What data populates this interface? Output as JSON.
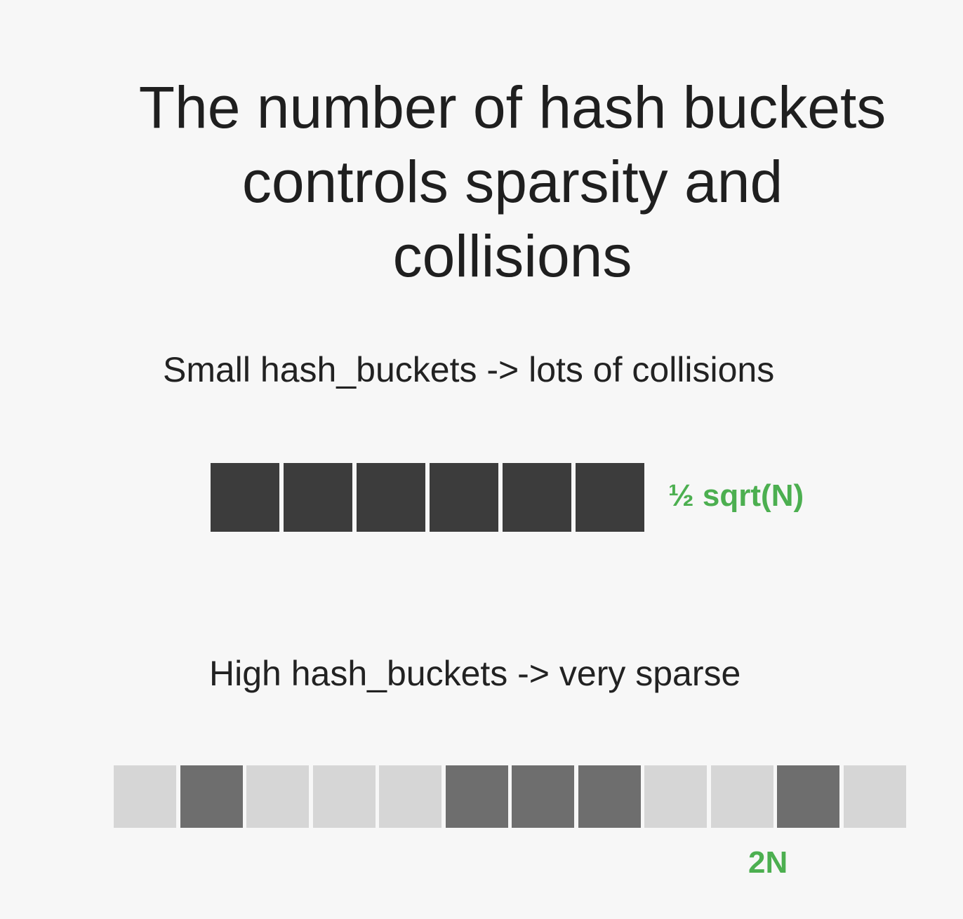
{
  "title": {
    "lines": [
      "The number of hash buckets",
      "controls sparsity and",
      "collisions"
    ]
  },
  "small": {
    "caption": "Small hash_buckets -> lots of collisions",
    "label": "½ sqrt(N)",
    "buckets": [
      "filled",
      "filled",
      "filled",
      "filled",
      "filled",
      "filled"
    ]
  },
  "high": {
    "caption": "High hash_buckets -> very sparse",
    "label": "2N",
    "buckets": [
      "empty",
      "filled",
      "empty",
      "empty",
      "empty",
      "filled",
      "filled",
      "filled",
      "empty",
      "empty",
      "filled",
      "empty"
    ]
  },
  "colors": {
    "dense_filled": "#3c3c3c",
    "sparse_filled": "#6e6e6e",
    "sparse_empty": "#d6d6d6",
    "accent_green": "#4caf50"
  }
}
